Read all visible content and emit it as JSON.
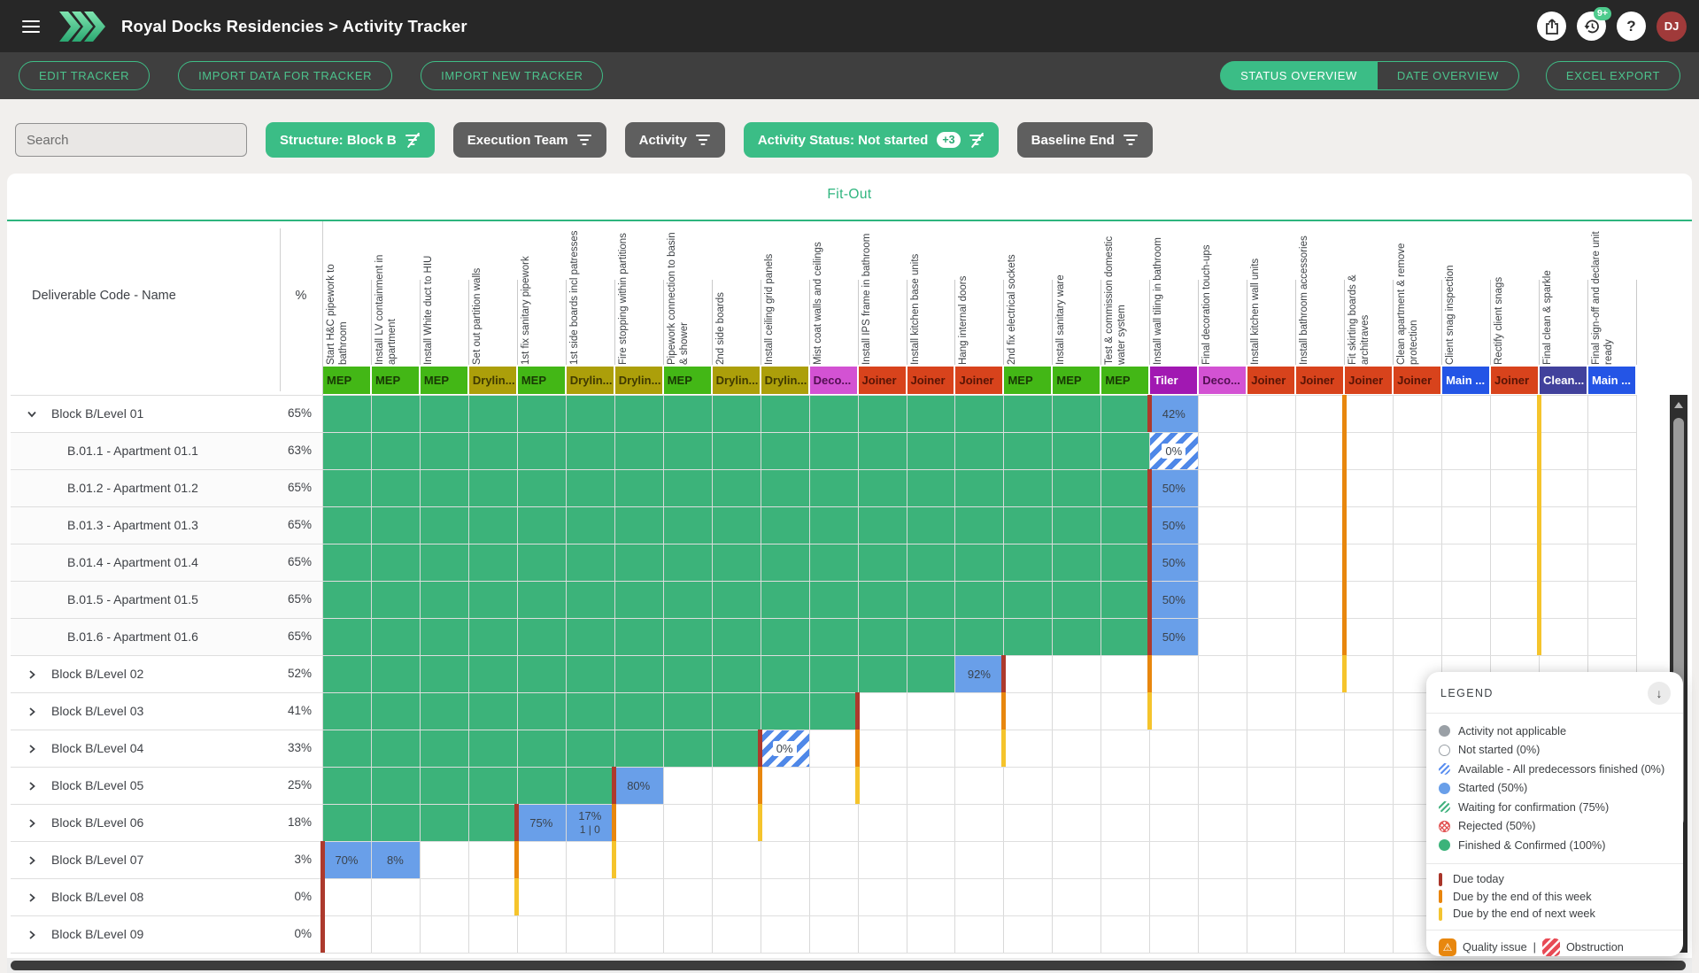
{
  "topbar": {
    "title": "Royal Docks Residencies > Activity Tracker",
    "avatar": "DJ",
    "badge": "9+"
  },
  "toolbar": {
    "buttons": [
      "EDIT TRACKER",
      "IMPORT DATA FOR TRACKER",
      "IMPORT NEW TRACKER"
    ],
    "views": [
      {
        "label": "STATUS OVERVIEW",
        "active": true
      },
      {
        "label": "DATE OVERVIEW",
        "active": false
      }
    ],
    "export_label": "EXCEL EXPORT"
  },
  "filters": {
    "search_placeholder": "Search",
    "chips": [
      {
        "label": "Structure: Block B",
        "active": true,
        "icon": "filter-off"
      },
      {
        "label": "Execution Team",
        "active": false,
        "icon": "filter"
      },
      {
        "label": "Activity",
        "active": false,
        "icon": "filter"
      },
      {
        "label": "Activity Status: Not started",
        "badge": "+3",
        "active": true,
        "icon": "filter-off"
      },
      {
        "label": "Baseline End",
        "active": false,
        "icon": "filter"
      }
    ]
  },
  "sheet": {
    "group_header": "Fit-Out",
    "left_header": "Deliverable Code - Name",
    "pct_header": "%"
  },
  "teams": {
    "MEP": {
      "bg": "#43b716",
      "fg": "rgba(15,30,0,0.82)"
    },
    "Drylin...": {
      "bg": "#ac9f0a",
      "fg": "rgba(40,35,0,0.82)"
    },
    "Deco...": {
      "bg": "#d352d3",
      "fg": "rgba(55,0,55,0.82)"
    },
    "Joiner": {
      "bg": "#d8431c",
      "fg": "rgba(60,10,0,0.82)"
    },
    "Tiler": {
      "bg": "#a118b2",
      "fg": "#ffffff"
    },
    "Main ...": {
      "bg": "#2455e6",
      "fg": "#ffffff"
    },
    "Clean...": {
      "bg": "#41419c",
      "fg": "#ffffff"
    }
  },
  "columns": [
    {
      "label": "Start H&C pipework to bathroom",
      "team": "MEP"
    },
    {
      "label": "Install LV containment in apartment",
      "team": "MEP"
    },
    {
      "label": "Install White duct to HIU",
      "team": "MEP"
    },
    {
      "label": "Set out partition walls",
      "team": "Drylin..."
    },
    {
      "label": "1st fix sanitary pipework",
      "team": "MEP"
    },
    {
      "label": "1st side boards incl patresses",
      "team": "Drylin..."
    },
    {
      "label": "Fire stopping within partitions",
      "team": "Drylin..."
    },
    {
      "label": "Pipework connection to basin & shower",
      "team": "MEP"
    },
    {
      "label": "2nd side boards",
      "team": "Drylin..."
    },
    {
      "label": "Install ceiling grid panels",
      "team": "Drylin..."
    },
    {
      "label": "Mist coat walls and ceilings",
      "team": "Deco..."
    },
    {
      "label": "Install IPS frame in bathroom",
      "team": "Joiner"
    },
    {
      "label": "Install kitchen base units",
      "team": "Joiner"
    },
    {
      "label": "Hang internal doors",
      "team": "Joiner"
    },
    {
      "label": "2nd fix electrical sockets",
      "team": "MEP"
    },
    {
      "label": "Install sanitary ware",
      "team": "MEP"
    },
    {
      "label": "Test & commission domestic water system",
      "team": "MEP"
    },
    {
      "label": "Install wall tiling in bathroom",
      "team": "Tiler"
    },
    {
      "label": "Final decoration touch-ups",
      "team": "Deco..."
    },
    {
      "label": "Install kitchen wall units",
      "team": "Joiner"
    },
    {
      "label": "Install bathroom accessories",
      "team": "Joiner"
    },
    {
      "label": "Fit skirting boards & architraves",
      "team": "Joiner"
    },
    {
      "label": "Clean apartment & remove protection",
      "team": "Joiner"
    },
    {
      "label": "Client snag inspection",
      "team": "Main ..."
    },
    {
      "label": "Rectify client snags",
      "team": "Joiner"
    },
    {
      "label": "Final clean & sparkle",
      "team": "Clean..."
    },
    {
      "label": "Final sign-off and declare unit ready",
      "team": "Main ..."
    }
  ],
  "rows": [
    {
      "name": "Block B/Level 01",
      "pct": "65%",
      "chevron": "down",
      "child": false,
      "green_to": 17,
      "cells": [
        {
          "col": 18,
          "type": "started",
          "label": "42%"
        }
      ],
      "bars": [
        {
          "col": 18,
          "color": "red"
        },
        {
          "col": 22,
          "color": "orange"
        },
        {
          "col": 26,
          "color": "yellow"
        }
      ]
    },
    {
      "name": "B.01.1 - Apartment 01.1",
      "pct": "63%",
      "chevron": null,
      "child": true,
      "green_to": 17,
      "cells": [
        {
          "col": 18,
          "type": "available",
          "label": "0%"
        }
      ],
      "bars": [
        {
          "col": 22,
          "color": "orange"
        },
        {
          "col": 26,
          "color": "yellow"
        }
      ]
    },
    {
      "name": "B.01.2 - Apartment 01.2",
      "pct": "65%",
      "chevron": null,
      "child": true,
      "green_to": 17,
      "cells": [
        {
          "col": 18,
          "type": "started",
          "label": "50%"
        }
      ],
      "bars": [
        {
          "col": 18,
          "color": "red"
        },
        {
          "col": 22,
          "color": "orange"
        },
        {
          "col": 26,
          "color": "yellow"
        }
      ]
    },
    {
      "name": "B.01.3 - Apartment 01.3",
      "pct": "65%",
      "chevron": null,
      "child": true,
      "green_to": 17,
      "cells": [
        {
          "col": 18,
          "type": "started",
          "label": "50%"
        }
      ],
      "bars": [
        {
          "col": 18,
          "color": "red"
        },
        {
          "col": 22,
          "color": "orange"
        },
        {
          "col": 26,
          "color": "yellow"
        }
      ]
    },
    {
      "name": "B.01.4 - Apartment 01.4",
      "pct": "65%",
      "chevron": null,
      "child": true,
      "green_to": 17,
      "cells": [
        {
          "col": 18,
          "type": "started",
          "label": "50%"
        }
      ],
      "bars": [
        {
          "col": 18,
          "color": "red"
        },
        {
          "col": 22,
          "color": "orange"
        },
        {
          "col": 26,
          "color": "yellow"
        }
      ]
    },
    {
      "name": "B.01.5 - Apartment 01.5",
      "pct": "65%",
      "chevron": null,
      "child": true,
      "green_to": 17,
      "cells": [
        {
          "col": 18,
          "type": "started",
          "label": "50%"
        }
      ],
      "bars": [
        {
          "col": 18,
          "color": "red"
        },
        {
          "col": 22,
          "color": "orange"
        },
        {
          "col": 26,
          "color": "yellow"
        }
      ]
    },
    {
      "name": "B.01.6 - Apartment 01.6",
      "pct": "65%",
      "chevron": null,
      "child": true,
      "green_to": 17,
      "cells": [
        {
          "col": 18,
          "type": "started",
          "label": "50%"
        }
      ],
      "bars": [
        {
          "col": 18,
          "color": "red"
        },
        {
          "col": 22,
          "color": "orange"
        },
        {
          "col": 26,
          "color": "yellow"
        }
      ]
    },
    {
      "name": "Block B/Level 02",
      "pct": "52%",
      "chevron": "right",
      "child": false,
      "green_to": 13,
      "cells": [
        {
          "col": 14,
          "type": "started",
          "label": "92%"
        }
      ],
      "bars": [
        {
          "col": 15,
          "color": "red"
        },
        {
          "col": 18,
          "color": "orange"
        },
        {
          "col": 22,
          "color": "yellow"
        }
      ]
    },
    {
      "name": "Block B/Level 03",
      "pct": "41%",
      "chevron": "right",
      "child": false,
      "green_to": 11,
      "cells": [],
      "bars": [
        {
          "col": 12,
          "color": "red"
        },
        {
          "col": 15,
          "color": "orange"
        },
        {
          "col": 18,
          "color": "yellow"
        }
      ]
    },
    {
      "name": "Block B/Level 04",
      "pct": "33%",
      "chevron": "right",
      "child": false,
      "green_to": 9,
      "cells": [
        {
          "col": 10,
          "type": "available",
          "label": "0%"
        }
      ],
      "bars": [
        {
          "col": 10,
          "color": "red"
        },
        {
          "col": 12,
          "color": "orange"
        },
        {
          "col": 15,
          "color": "yellow"
        }
      ]
    },
    {
      "name": "Block B/Level 05",
      "pct": "25%",
      "chevron": "right",
      "child": false,
      "green_to": 6,
      "cells": [
        {
          "col": 7,
          "type": "started",
          "label": "80%"
        }
      ],
      "bars": [
        {
          "col": 7,
          "color": "red"
        },
        {
          "col": 10,
          "color": "orange"
        },
        {
          "col": 12,
          "color": "yellow"
        }
      ]
    },
    {
      "name": "Block B/Level 06",
      "pct": "18%",
      "chevron": "right",
      "child": false,
      "green_to": 4,
      "cells": [
        {
          "col": 5,
          "type": "started",
          "label": "75%"
        },
        {
          "col": 6,
          "type": "started",
          "label": "17%",
          "sub": "1 | 0"
        }
      ],
      "bars": [
        {
          "col": 5,
          "color": "red"
        },
        {
          "col": 7,
          "color": "orange"
        },
        {
          "col": 10,
          "color": "yellow"
        }
      ]
    },
    {
      "name": "Block B/Level 07",
      "pct": "3%",
      "chevron": "right",
      "child": false,
      "green_to": 0,
      "cells": [
        {
          "col": 1,
          "type": "started",
          "label": "70%"
        },
        {
          "col": 2,
          "type": "started",
          "label": "8%"
        }
      ],
      "bars": [
        {
          "col": 1,
          "color": "red"
        },
        {
          "col": 5,
          "color": "orange"
        },
        {
          "col": 7,
          "color": "yellow"
        }
      ]
    },
    {
      "name": "Block B/Level 08",
      "pct": "0%",
      "chevron": "right",
      "child": false,
      "green_to": 0,
      "cells": [],
      "bars": [
        {
          "col": 1,
          "color": "red"
        },
        {
          "col": 5,
          "color": "yellow"
        }
      ]
    },
    {
      "name": "Block B/Level 09",
      "pct": "0%",
      "chevron": "right",
      "child": false,
      "green_to": 0,
      "cells": [],
      "bars": [
        {
          "col": 1,
          "color": "red"
        }
      ]
    }
  ],
  "legend": {
    "title": "LEGEND",
    "items": [
      {
        "icon": "dot-na",
        "label": "Activity not applicable"
      },
      {
        "icon": "dot-hollow",
        "label": "Not started (0%)"
      },
      {
        "icon": "dot-stripe-blue",
        "label": "Available - All predecessors finished (0%)"
      },
      {
        "icon": "dot-blue",
        "label": "Started (50%)"
      },
      {
        "icon": "dot-stripe-green",
        "label": "Waiting for confirmation (75%)"
      },
      {
        "icon": "dot-rejected",
        "label": "Rejected (50%)"
      },
      {
        "icon": "dot-green",
        "label": "Finished & Confirmed (100%)"
      }
    ],
    "bars": [
      {
        "color": "#a93529",
        "label": "Due today"
      },
      {
        "color": "#e8850c",
        "label": "Due by the end of this week"
      },
      {
        "color": "#f4c430",
        "label": "Due by the end of next week"
      }
    ],
    "quality_label": "Quality issue",
    "separator": "|",
    "obstruction_label": "Obstruction"
  },
  "colors": {
    "accent": "#3bbd86",
    "finished": "#3cb37a",
    "started": "#699fe9",
    "available_stripe": "#4f88e8",
    "due_today": "#ad3a2d",
    "due_this_week": "#e8870e",
    "due_next_week": "#f5c42c"
  }
}
